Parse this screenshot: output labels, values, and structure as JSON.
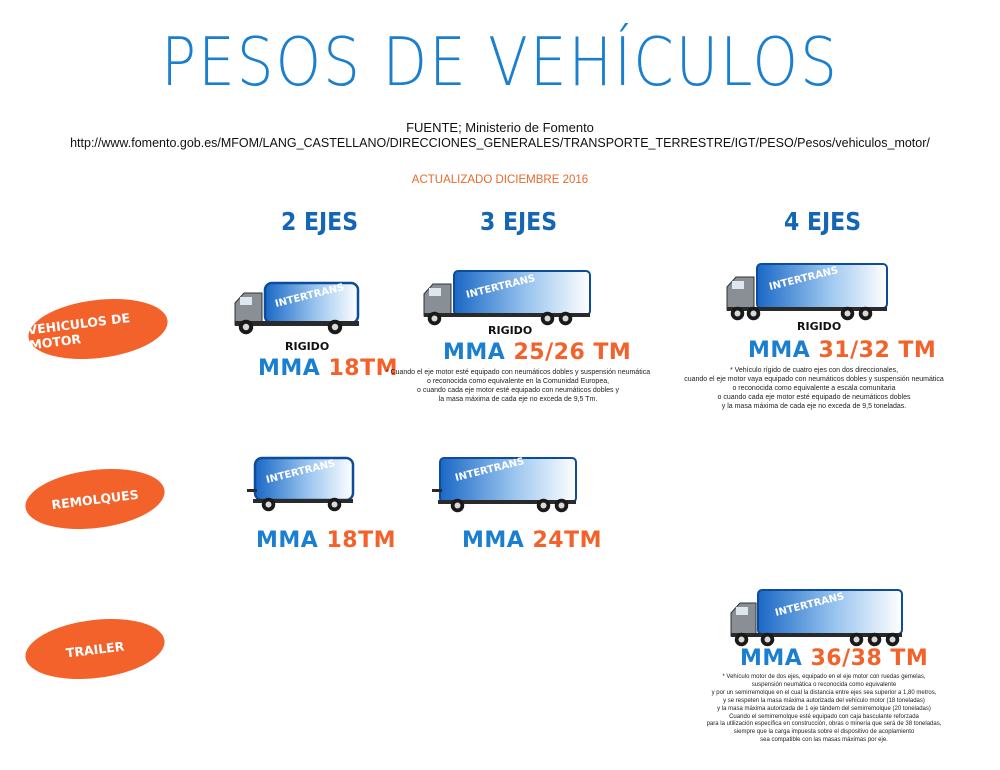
{
  "title": "PESOS DE VEHÍCULOS",
  "source_line": "FUENTE; Ministerio de Fomento",
  "source_url": "http://www.fomento.gob.es/MFOM/LANG_CASTELLANO/DIRECCIONES_GENERALES/TRANSPORTE_TERRESTRE/IGT/PESO/Pesos/vehiculos_motor/",
  "updated": "ACTUALIZADO DICIEMBRE 2016",
  "columns": {
    "c2": "2 EJES",
    "c3": "3 EJES",
    "c4": "4 EJES"
  },
  "rows": {
    "motor": "VEHICULOS DE MOTOR",
    "remolques": "REMOLQUES",
    "trailer": "TRAILER"
  },
  "truck_logo": "INTERTRANS",
  "colors": {
    "blue": "#1a7fd0",
    "orange": "#f2622a",
    "title_blue": "#1b7fd0"
  },
  "motor": {
    "c2": {
      "type": "RIGIDO",
      "mma_label": "MMA",
      "mma_value": "18TM"
    },
    "c3": {
      "type": "RIGIDO",
      "mma_label": "MMA",
      "mma_value": "25/26 TM",
      "note": [
        "* Cuando el eje motor esté equipado con neumáticos dobles y suspensión neumática",
        "o reconocida como equivalente en la Comunidad Europea,",
        "o cuando cada eje motor esté equipado con neumáticos dobles y",
        "la masa máxima de cada eje no exceda de 9,5 Tm."
      ]
    },
    "c4": {
      "type": "RIGIDO",
      "mma_label": "MMA",
      "mma_value": "31/32 TM",
      "note": [
        "* Vehículo rígido de cuatro ejes con dos direccionales,",
        "cuando el eje motor vaya equipado con neumáticos dobles y suspensión neumática",
        "o reconocida como equivalente a escala comunitaria",
        "o cuando cada eje motor esté equipado de neumáticos dobles",
        "y la masa máxima de cada eje no exceda de 9,5 toneladas."
      ]
    }
  },
  "remolques": {
    "c2": {
      "mma_label": "MMA",
      "mma_value": "18TM"
    },
    "c3": {
      "mma_label": "MMA",
      "mma_value": "24TM"
    }
  },
  "trailer": {
    "c4": {
      "mma_label": "MMA",
      "mma_value": "36/38 TM",
      "note": [
        "* Vehículo motor de dos ejes, equipado en el eje motor con ruedas gemelas,",
        "suspensión neumática o reconocida como equivalente",
        "y por un semirremolque en el cual la distancia entre ejes sea superior a 1,80 metros,",
        "y se respeten la masa máxima autorizada del vehículo motor (18 toneladas)",
        "y la masa máxima autorizada de 1 eje tándem del semirremolque (20 toneladas)",
        "Cuando el semirremolque esté equipado con caja basculante reforzada",
        "para la utilización específica en construcción, obras o minería que será de 38 toneladas,",
        "siempre que la carga impuesta sobre el dispositivo de acoplamiento",
        "sea compatible con las masas máximas por eje."
      ]
    }
  }
}
